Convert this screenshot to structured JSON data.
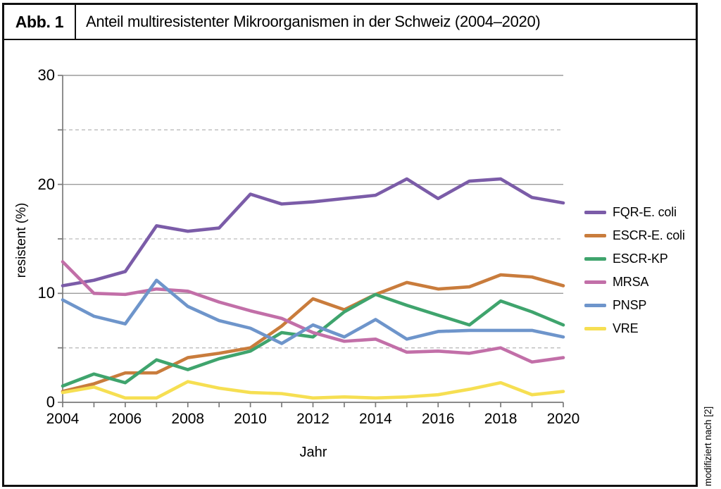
{
  "figure": {
    "label": "Abb. 1",
    "title": "Anteil multiresistenter Mikroorganismen in der Schweiz (2004–2020)",
    "source_note": "modifiziert nach [2]"
  },
  "chart_data": {
    "type": "line",
    "xlabel": "Jahr",
    "ylabel": "resistent (%)",
    "x": [
      2004,
      2005,
      2006,
      2007,
      2008,
      2009,
      2010,
      2011,
      2012,
      2013,
      2014,
      2015,
      2016,
      2017,
      2018,
      2019,
      2020
    ],
    "x_tick_labels": [
      "2004",
      "2006",
      "2008",
      "2010",
      "2012",
      "2014",
      "2016",
      "2018",
      "2020"
    ],
    "y_ticks": [
      0,
      10,
      20,
      30
    ],
    "y_minor_dashed": [
      5,
      15,
      25
    ],
    "ylim": [
      0,
      30
    ],
    "xlim": [
      2004,
      2020
    ],
    "grid": true,
    "legend_position": "right",
    "series": [
      {
        "name": "FQR-E. coli",
        "color": "#7b5ca8",
        "values": [
          10.7,
          11.2,
          12.0,
          16.2,
          15.7,
          16.0,
          19.1,
          18.2,
          18.4,
          18.7,
          19.0,
          20.5,
          18.7,
          20.3,
          20.5,
          18.8,
          18.3
        ]
      },
      {
        "name": "ESCR-E. coli",
        "color": "#c97c3c",
        "values": [
          1.0,
          1.7,
          2.7,
          2.7,
          4.1,
          4.5,
          5.0,
          7.0,
          9.5,
          8.5,
          9.9,
          11.0,
          10.4,
          10.6,
          11.7,
          11.5,
          10.7
        ]
      },
      {
        "name": "ESCR-KP",
        "color": "#3fa46d",
        "values": [
          1.5,
          2.6,
          1.8,
          3.9,
          3.0,
          4.0,
          4.7,
          6.4,
          6.0,
          8.3,
          9.9,
          8.9,
          8.0,
          7.1,
          9.3,
          8.3,
          7.1
        ]
      },
      {
        "name": "MRSA",
        "color": "#c26fa8",
        "values": [
          12.9,
          10.0,
          9.9,
          10.4,
          10.2,
          9.2,
          8.4,
          7.7,
          6.4,
          5.6,
          5.8,
          4.6,
          4.7,
          4.5,
          5.0,
          3.7,
          4.1
        ]
      },
      {
        "name": "PNSP",
        "color": "#6e95cb",
        "values": [
          9.4,
          7.9,
          7.2,
          11.2,
          8.8,
          7.5,
          6.8,
          5.4,
          7.1,
          6.0,
          7.6,
          5.8,
          6.5,
          6.6,
          6.6,
          6.6,
          6.0
        ]
      },
      {
        "name": "VRE",
        "color": "#f6df52",
        "values": [
          0.9,
          1.4,
          0.4,
          0.4,
          1.9,
          1.3,
          0.9,
          0.8,
          0.4,
          0.5,
          0.4,
          0.5,
          0.7,
          1.2,
          1.8,
          0.7,
          1.0
        ]
      }
    ]
  },
  "colors": {
    "grid_solid": "#9c9c9c",
    "grid_dashed": "#bcbcbc",
    "axis": "#7a7a7a",
    "border": "#111111"
  }
}
